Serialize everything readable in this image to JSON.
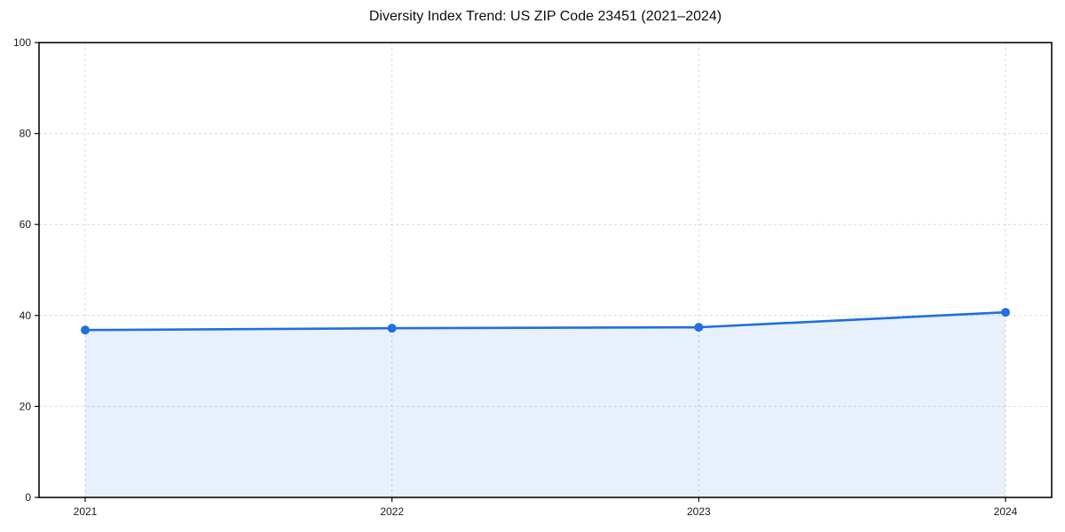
{
  "figure": {
    "background": "#ffffff"
  },
  "chart_data": {
    "type": "line",
    "title": "Diversity Index Trend: US ZIP Code 23451 (2021–2024)",
    "categories": [
      "2021",
      "2022",
      "2023",
      "2024"
    ],
    "series": [
      {
        "name": "Diversity Index",
        "values": [
          36.8,
          37.2,
          37.4,
          40.7
        ]
      }
    ],
    "xlabel": "",
    "ylabel": "",
    "ylim": [
      0,
      100
    ],
    "yticks": [
      0,
      20,
      40,
      60,
      80,
      100
    ],
    "grid": true,
    "grid_style": "dashed",
    "legend_position": "none",
    "colors": {
      "line": "#1f6fe0",
      "marker": "#1f6fe0",
      "area_fill": "#1f6fe0",
      "area_fill_opacity": 0.1,
      "gridline": "#d9d9d9",
      "spine": "#0a0a0a",
      "tick_label": "#1a1a1a",
      "title": "#0d0d0d",
      "background": "#ffffff"
    }
  }
}
